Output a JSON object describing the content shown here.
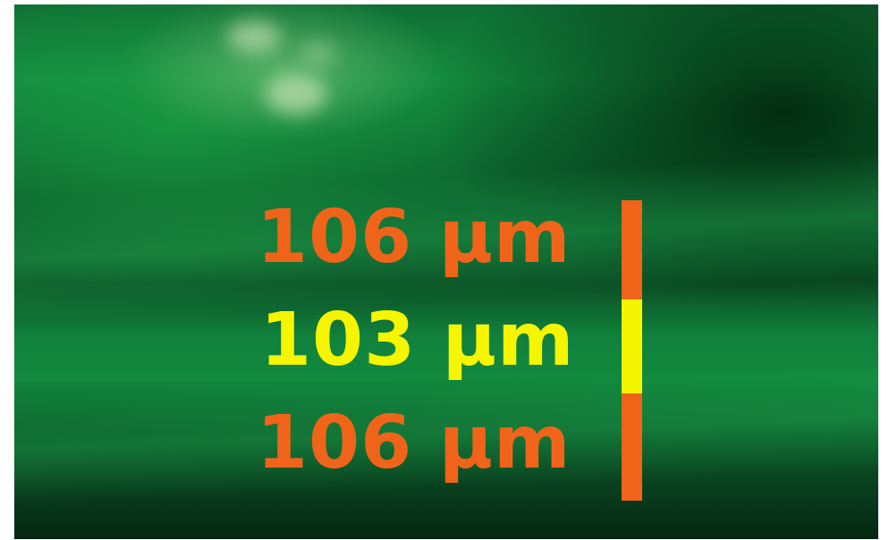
{
  "colors": {
    "outer_segment": "#f0641a",
    "middle_segment": "#f5f500"
  },
  "measurements": [
    {
      "label": "106 µm",
      "color": "#f0641a"
    },
    {
      "label": "103 µm",
      "color": "#f5f500"
    },
    {
      "label": "106 µm",
      "color": "#f0641a"
    }
  ]
}
